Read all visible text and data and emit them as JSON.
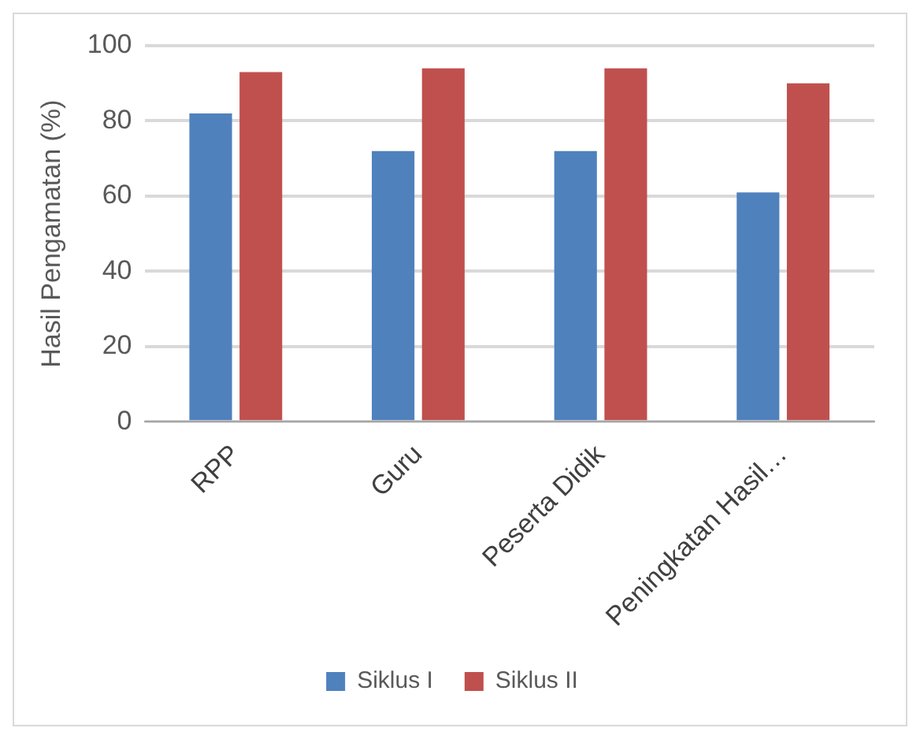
{
  "chart_data": {
    "type": "bar",
    "ylabel": "Hasil Pengamatan (%)",
    "categories": [
      "RPP",
      "Guru",
      "Peserta Didik",
      "Peningkatan Hasil…"
    ],
    "series": [
      {
        "name": "Siklus I",
        "color": "#4f81bd",
        "values": [
          82,
          72,
          72,
          61
        ]
      },
      {
        "name": "Siklus II",
        "color": "#c0504d",
        "values": [
          93,
          94,
          94,
          90
        ]
      }
    ],
    "ylim": [
      0,
      100
    ],
    "yticks": [
      0,
      20,
      40,
      60,
      80,
      100
    ],
    "grid": "y",
    "legend": "bottom"
  }
}
